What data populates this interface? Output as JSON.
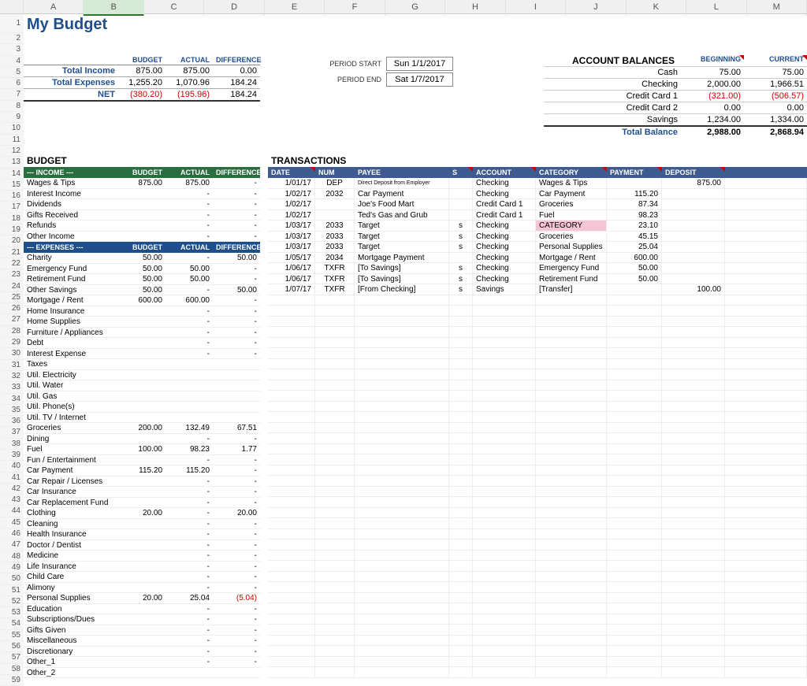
{
  "columns": [
    "A",
    "B",
    "C",
    "D",
    "E",
    "F",
    "G",
    "H",
    "I",
    "J",
    "K",
    "L",
    "M"
  ],
  "title": "My Budget",
  "summary": {
    "headers": [
      "BUDGET",
      "ACTUAL",
      "DIFFERENCE"
    ],
    "rows": [
      {
        "label": "Total Income",
        "budget": "875.00",
        "actual": "875.00",
        "diff": "0.00"
      },
      {
        "label": "Total Expenses",
        "budget": "1,255.20",
        "actual": "1,070.96",
        "diff": "184.24"
      },
      {
        "label": "NET",
        "budget": "(380.20)",
        "actual": "(195.96)",
        "diff": "184.24",
        "neg": true
      }
    ]
  },
  "period": {
    "start_label": "PERIOD START",
    "start": "Sun 1/1/2017",
    "end_label": "PERIOD END",
    "end": "Sat 1/7/2017"
  },
  "balances": {
    "title": "ACCOUNT BALANCES",
    "col1": "BEGINNING",
    "col2": "CURRENT",
    "rows": [
      {
        "name": "Cash",
        "beg": "75.00",
        "cur": "75.00"
      },
      {
        "name": "Checking",
        "beg": "2,000.00",
        "cur": "1,966.51"
      },
      {
        "name": "Credit Card 1",
        "beg": "(321.00)",
        "cur": "(506.57)",
        "neg": true
      },
      {
        "name": "Credit Card 2",
        "beg": "0.00",
        "cur": "0.00"
      },
      {
        "name": "Savings",
        "beg": "1,234.00",
        "cur": "1,334.00"
      }
    ],
    "total_label": "Total Balance",
    "total_beg": "2,988.00",
    "total_cur": "2,868.94"
  },
  "budget_title": "BUDGET",
  "income_header": {
    "label": "--- INCOME ---",
    "c1": "BUDGET",
    "c2": "ACTUAL",
    "c3": "DIFFERENCE"
  },
  "income": [
    {
      "name": "Wages & Tips",
      "b": "875.00",
      "a": "875.00",
      "d": "-"
    },
    {
      "name": "Interest Income",
      "b": "",
      "a": "-",
      "d": "-"
    },
    {
      "name": "Dividends",
      "b": "",
      "a": "-",
      "d": "-"
    },
    {
      "name": "Gifts Received",
      "b": "",
      "a": "-",
      "d": "-"
    },
    {
      "name": "Refunds",
      "b": "",
      "a": "-",
      "d": "-"
    },
    {
      "name": "Other Income",
      "b": "",
      "a": "-",
      "d": "-"
    }
  ],
  "expense_header": {
    "label": "--- EXPENSES ---",
    "c1": "BUDGET",
    "c2": "ACTUAL",
    "c3": "DIFFERENCE"
  },
  "expenses": [
    {
      "name": "Charity",
      "b": "50.00",
      "a": "-",
      "d": "50.00"
    },
    {
      "name": "Emergency Fund",
      "b": "50.00",
      "a": "50.00",
      "d": "-"
    },
    {
      "name": "Retirement Fund",
      "b": "50.00",
      "a": "50.00",
      "d": "-"
    },
    {
      "name": "Other Savings",
      "b": "50.00",
      "a": "-",
      "d": "50.00"
    },
    {
      "name": "Mortgage / Rent",
      "b": "600.00",
      "a": "600.00",
      "d": "-"
    },
    {
      "name": "Home Insurance",
      "b": "",
      "a": "-",
      "d": "-"
    },
    {
      "name": "Home Supplies",
      "b": "",
      "a": "-",
      "d": "-"
    },
    {
      "name": "Furniture / Appliances",
      "b": "",
      "a": "-",
      "d": "-"
    },
    {
      "name": "Debt",
      "b": "",
      "a": "-",
      "d": "-"
    },
    {
      "name": "Interest Expense",
      "b": "",
      "a": "-",
      "d": "-"
    },
    {
      "name": "Taxes",
      "b": "",
      "a": "",
      "d": ""
    },
    {
      "name": "Util. Electricity",
      "b": "",
      "a": "",
      "d": ""
    },
    {
      "name": "Util. Water",
      "b": "",
      "a": "",
      "d": ""
    },
    {
      "name": "Util. Gas",
      "b": "",
      "a": "",
      "d": ""
    },
    {
      "name": "Util. Phone(s)",
      "b": "",
      "a": "",
      "d": ""
    },
    {
      "name": "Util. TV / Internet",
      "b": "",
      "a": "",
      "d": ""
    },
    {
      "name": "Groceries",
      "b": "200.00",
      "a": "132.49",
      "d": "67.51"
    },
    {
      "name": "Dining",
      "b": "",
      "a": "-",
      "d": "-"
    },
    {
      "name": "Fuel",
      "b": "100.00",
      "a": "98.23",
      "d": "1.77"
    },
    {
      "name": "Fun / Entertainment",
      "b": "",
      "a": "-",
      "d": "-"
    },
    {
      "name": "Car Payment",
      "b": "115.20",
      "a": "115.20",
      "d": "-"
    },
    {
      "name": "Car Repair / Licenses",
      "b": "",
      "a": "-",
      "d": "-"
    },
    {
      "name": "Car Insurance",
      "b": "",
      "a": "-",
      "d": "-"
    },
    {
      "name": "Car Replacement Fund",
      "b": "",
      "a": "-",
      "d": "-"
    },
    {
      "name": "Clothing",
      "b": "20.00",
      "a": "-",
      "d": "20.00"
    },
    {
      "name": "Cleaning",
      "b": "",
      "a": "-",
      "d": "-"
    },
    {
      "name": "Health Insurance",
      "b": "",
      "a": "-",
      "d": "-"
    },
    {
      "name": "Doctor / Dentist",
      "b": "",
      "a": "-",
      "d": "-"
    },
    {
      "name": "Medicine",
      "b": "",
      "a": "-",
      "d": "-"
    },
    {
      "name": "Life Insurance",
      "b": "",
      "a": "-",
      "d": "-"
    },
    {
      "name": "Child Care",
      "b": "",
      "a": "-",
      "d": "-"
    },
    {
      "name": "Alimony",
      "b": "",
      "a": "-",
      "d": "-"
    },
    {
      "name": "Personal Supplies",
      "b": "20.00",
      "a": "25.04",
      "d": "(5.04)",
      "neg": true
    },
    {
      "name": "Education",
      "b": "",
      "a": "-",
      "d": "-"
    },
    {
      "name": "Subscriptions/Dues",
      "b": "",
      "a": "-",
      "d": "-"
    },
    {
      "name": "Gifts Given",
      "b": "",
      "a": "-",
      "d": "-"
    },
    {
      "name": "Miscellaneous",
      "b": "",
      "a": "-",
      "d": "-"
    },
    {
      "name": "Discretionary",
      "b": "",
      "a": "-",
      "d": "-"
    },
    {
      "name": "Other_1",
      "b": "",
      "a": "-",
      "d": "-"
    },
    {
      "name": "Other_2",
      "b": "",
      "a": "",
      "d": ""
    }
  ],
  "trans_title": "TRANSACTIONS",
  "trans_header": [
    "DATE",
    "NUM",
    "PAYEE",
    "S",
    "ACCOUNT",
    "CATEGORY",
    "PAYMENT",
    "DEPOSIT"
  ],
  "transactions": [
    {
      "date": "1/01/17",
      "num": "DEP",
      "payee": "Direct Deposit from Employer",
      "s": "",
      "acct": "Checking",
      "cat": "Wages & Tips",
      "pay": "",
      "dep": "875.00",
      "payee_small": true
    },
    {
      "date": "1/02/17",
      "num": "2032",
      "payee": "Car Payment",
      "s": "",
      "acct": "Checking",
      "cat": "Car Payment",
      "pay": "115.20",
      "dep": ""
    },
    {
      "date": "1/02/17",
      "num": "",
      "payee": "Joe's Food Mart",
      "s": "",
      "acct": "Credit Card 1",
      "cat": "Groceries",
      "pay": "87.34",
      "dep": ""
    },
    {
      "date": "1/02/17",
      "num": "",
      "payee": "Ted's Gas and Grub",
      "s": "",
      "acct": "Credit Card 1",
      "cat": "Fuel",
      "pay": "98.23",
      "dep": ""
    },
    {
      "date": "1/03/17",
      "num": "2033",
      "payee": "Target",
      "s": "s",
      "acct": "Checking",
      "cat": "CATEGORY",
      "pay": "23.10",
      "dep": "",
      "hl": true
    },
    {
      "date": "1/03/17",
      "num": "2033",
      "payee": "Target",
      "s": "s",
      "acct": "Checking",
      "cat": "Groceries",
      "pay": "45.15",
      "dep": ""
    },
    {
      "date": "1/03/17",
      "num": "2033",
      "payee": "Target",
      "s": "s",
      "acct": "Checking",
      "cat": "Personal Supplies",
      "pay": "25.04",
      "dep": ""
    },
    {
      "date": "1/05/17",
      "num": "2034",
      "payee": "Mortgage Payment",
      "s": "",
      "acct": "Checking",
      "cat": "Mortgage / Rent",
      "pay": "600.00",
      "dep": ""
    },
    {
      "date": "1/06/17",
      "num": "TXFR",
      "payee": "[To Savings]",
      "s": "s",
      "acct": "Checking",
      "cat": "Emergency Fund",
      "pay": "50.00",
      "dep": ""
    },
    {
      "date": "1/06/17",
      "num": "TXFR",
      "payee": "[To Savings]",
      "s": "s",
      "acct": "Checking",
      "cat": "Retirement Fund",
      "pay": "50.00",
      "dep": ""
    },
    {
      "date": "1/07/17",
      "num": "TXFR",
      "payee": "[From Checking]",
      "s": "s",
      "acct": "Savings",
      "cat": "[Transfer]",
      "pay": "",
      "dep": "100.00"
    }
  ],
  "empty_trans_rows": 36
}
